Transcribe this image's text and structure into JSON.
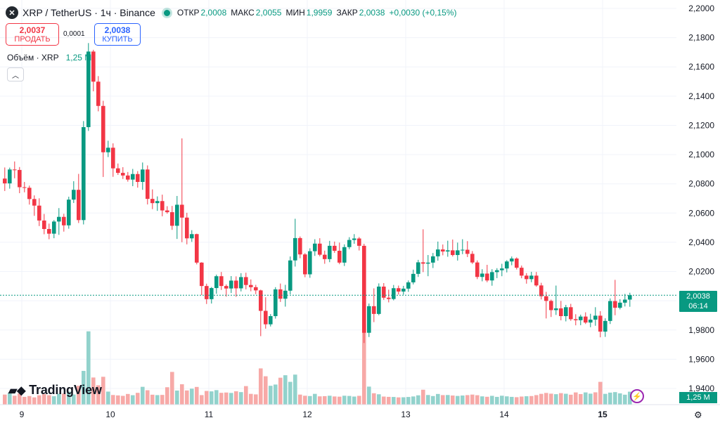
{
  "header": {
    "symbol": "XRP / TetherUS · 1ч · Binance",
    "open_label": "ОТКР",
    "open": "2,0008",
    "high_label": "МАКС",
    "high": "2,0055",
    "low_label": "МИН",
    "low": "1,9959",
    "close_label": "ЗАКР",
    "close": "2,0038",
    "change": "+0,0030 (+0,15%)"
  },
  "trade": {
    "sell_price": "2,0037",
    "sell_label": "ПРОДАТЬ",
    "spread": "0,0001",
    "buy_price": "2,0038",
    "buy_label": "КУПИТЬ"
  },
  "volume_legend": {
    "label": "Объём · XRP",
    "value": "1,25 M"
  },
  "brand": {
    "name": "TradingView"
  },
  "price_tag": {
    "price": "2,0038",
    "countdown": "06:14"
  },
  "volume_tag": {
    "value": "1,25 M"
  },
  "colors": {
    "up": "#089981",
    "down": "#f23645",
    "up_volume": "#92d2cc",
    "down_volume": "#f7a9a7"
  },
  "chart_data": {
    "type": "candlestick",
    "timeframe": "1ч",
    "y_ticks": [
      "2,2000",
      "2,1800",
      "2,1600",
      "2,1400",
      "2,1200",
      "2,1000",
      "2,0800",
      "2,0600",
      "2,0400",
      "2,0200",
      "2,0000",
      "1,9800",
      "1,9600",
      "1,9400"
    ],
    "ylim": [
      1.935,
      2.2
    ],
    "x_ticks": [
      "9",
      "10",
      "11",
      "12",
      "13",
      "14",
      "15"
    ],
    "last_price": 2.0038,
    "candles": [
      [
        2.0836,
        2.0912,
        2.0751,
        2.0803
      ],
      [
        2.0803,
        2.0911,
        2.0767,
        2.0898
      ],
      [
        2.0898,
        2.0953,
        2.0838,
        2.0895
      ],
      [
        2.0895,
        2.0915,
        2.0736,
        2.0777
      ],
      [
        2.0777,
        2.0813,
        2.0742,
        2.0773
      ],
      [
        2.0773,
        2.0788,
        2.0658,
        2.0696
      ],
      [
        2.0696,
        2.0721,
        2.0581,
        2.0651
      ],
      [
        2.0651,
        2.0701,
        2.0511,
        2.0549
      ],
      [
        2.0549,
        2.0594,
        2.0455,
        2.0491
      ],
      [
        2.0491,
        2.0528,
        2.0421,
        2.0459
      ],
      [
        2.0459,
        2.0552,
        2.0428,
        2.0542
      ],
      [
        2.0542,
        2.0634,
        2.0451,
        2.0574
      ],
      [
        2.0574,
        2.0595,
        2.0473,
        2.0516
      ],
      [
        2.0516,
        2.0712,
        2.0493,
        2.0692
      ],
      [
        2.0692,
        2.0818,
        2.0669,
        2.0759
      ],
      [
        2.0759,
        2.0868,
        2.0532,
        2.0552
      ],
      [
        2.0552,
        2.1229,
        2.0522,
        2.1188
      ],
      [
        2.1188,
        2.1763,
        2.1162,
        2.1705
      ],
      [
        2.1705,
        2.1717,
        2.1433,
        2.1499
      ],
      [
        2.1499,
        2.1537,
        2.1296,
        2.1333
      ],
      [
        2.1333,
        2.1368,
        2.0847,
        2.1016
      ],
      [
        2.1016,
        2.1095,
        2.0983,
        2.1047
      ],
      [
        2.1047,
        2.1077,
        2.0848,
        2.0906
      ],
      [
        2.0906,
        2.0939,
        2.0861,
        2.0875
      ],
      [
        2.0875,
        2.0914,
        2.0833,
        2.0857
      ],
      [
        2.0857,
        2.0881,
        2.0815,
        2.0829
      ],
      [
        2.0829,
        2.0902,
        2.0784,
        2.0867
      ],
      [
        2.0867,
        2.0887,
        2.0774,
        2.0813
      ],
      [
        2.0813,
        2.0946,
        2.0759,
        2.0898
      ],
      [
        2.0898,
        2.0926,
        2.0659,
        2.0697
      ],
      [
        2.0697,
        2.0762,
        2.0627,
        2.0668
      ],
      [
        2.0668,
        2.0714,
        2.0615,
        2.0682
      ],
      [
        2.0682,
        2.0726,
        2.0578,
        2.0618
      ],
      [
        2.0618,
        2.0647,
        2.0596,
        2.0606
      ],
      [
        2.0606,
        2.0649,
        2.0485,
        2.0513
      ],
      [
        2.0513,
        2.0717,
        2.0423,
        2.0657
      ],
      [
        2.0657,
        2.1111,
        2.0401,
        2.0569
      ],
      [
        2.0569,
        2.0602,
        2.0386,
        2.0427
      ],
      [
        2.0427,
        2.0483,
        2.0403,
        2.0456
      ],
      [
        2.0456,
        2.0459,
        2.0249,
        2.0261
      ],
      [
        2.0261,
        2.0264,
        2.0039,
        2.0101
      ],
      [
        2.0101,
        2.0117,
        1.9978,
        2.0011
      ],
      [
        2.0011,
        2.0094,
        1.9981,
        2.0087
      ],
      [
        2.0087,
        2.0179,
        2.0048,
        2.0168
      ],
      [
        2.0168,
        2.0197,
        2.0074,
        2.0101
      ],
      [
        2.0101,
        2.0112,
        2.0028,
        2.0084
      ],
      [
        2.0084,
        2.0169,
        2.0053,
        2.0138
      ],
      [
        2.0138,
        2.0167,
        2.0027,
        2.0085
      ],
      [
        2.0085,
        2.0189,
        2.0064,
        2.0162
      ],
      [
        2.0162,
        2.0192,
        2.0078,
        2.0108
      ],
      [
        2.0108,
        2.0146,
        2.0065,
        2.0093
      ],
      [
        2.0093,
        2.0109,
        2.0045,
        2.0071
      ],
      [
        2.0071,
        2.0076,
        1.9758,
        1.9931
      ],
      [
        1.9931,
        2.0024,
        1.9809,
        1.9839
      ],
      [
        1.9839,
        1.9909,
        1.9824,
        1.9895
      ],
      [
        1.9895,
        2.0093,
        1.9878,
        2.0078
      ],
      [
        2.0078,
        2.0118,
        1.9992,
        2.0014
      ],
      [
        2.0014,
        2.0109,
        1.996,
        2.0069
      ],
      [
        2.0069,
        2.0303,
        2.0044,
        2.0276
      ],
      [
        2.0276,
        2.0561,
        2.0234,
        2.0429
      ],
      [
        2.0429,
        2.044,
        2.0291,
        2.0317
      ],
      [
        2.0317,
        2.0326,
        2.0161,
        2.0181
      ],
      [
        2.0181,
        2.0359,
        2.0157,
        2.0339
      ],
      [
        2.0339,
        2.0421,
        2.0307,
        2.0391
      ],
      [
        2.0391,
        2.0428,
        2.0304,
        2.0315
      ],
      [
        2.0315,
        2.0343,
        2.0253,
        2.0285
      ],
      [
        2.0285,
        2.041,
        2.0264,
        2.0376
      ],
      [
        2.0376,
        2.0405,
        2.0328,
        2.0342
      ],
      [
        2.0342,
        2.0398,
        2.025,
        2.0261
      ],
      [
        2.0261,
        2.0386,
        2.0238,
        2.0367
      ],
      [
        2.0367,
        2.0435,
        2.0353,
        2.0416
      ],
      [
        2.0416,
        2.0456,
        2.039,
        2.0426
      ],
      [
        2.0426,
        2.0436,
        2.0344,
        2.0376
      ],
      [
        2.0376,
        2.039,
        1.9711,
        1.9781
      ],
      [
        1.9781,
        1.9981,
        1.9752,
        1.9963
      ],
      [
        1.9963,
        2.0085,
        1.9854,
        1.991
      ],
      [
        1.991,
        2.0119,
        1.9901,
        2.0097
      ],
      [
        2.0097,
        2.0121,
        2.0006,
        2.0021
      ],
      [
        2.0021,
        2.0076,
        1.9989,
        2.0012
      ],
      [
        2.0012,
        2.0108,
        2.0003,
        2.0086
      ],
      [
        2.0086,
        2.0104,
        2.0043,
        2.0063
      ],
      [
        2.0063,
        2.0102,
        2.0042,
        2.0083
      ],
      [
        2.0083,
        2.0139,
        2.0061,
        2.0126
      ],
      [
        2.0126,
        2.0213,
        2.0112,
        2.0184
      ],
      [
        2.0184,
        2.028,
        2.0163,
        2.0263
      ],
      [
        2.0263,
        2.0489,
        2.0196,
        2.0254
      ],
      [
        2.0254,
        2.0313,
        2.0168,
        2.0261
      ],
      [
        2.0261,
        2.0327,
        2.0224,
        2.0304
      ],
      [
        2.0304,
        2.0405,
        2.0274,
        2.0351
      ],
      [
        2.0351,
        2.0385,
        2.0311,
        2.0337
      ],
      [
        2.0337,
        2.0411,
        2.0301,
        2.0345
      ],
      [
        2.0345,
        2.0419,
        2.0303,
        2.0313
      ],
      [
        2.0313,
        2.0398,
        2.0275,
        2.0345
      ],
      [
        2.0345,
        2.0421,
        2.0319,
        2.0349
      ],
      [
        2.0349,
        2.0408,
        2.0299,
        2.0321
      ],
      [
        2.0321,
        2.034,
        2.0252,
        2.0262
      ],
      [
        2.0262,
        2.0276,
        2.0148,
        2.0163
      ],
      [
        2.0163,
        2.0216,
        2.0133,
        2.0186
      ],
      [
        2.0186,
        2.0246,
        2.0127,
        2.0139
      ],
      [
        2.0139,
        2.0216,
        2.0103,
        2.0196
      ],
      [
        2.0196,
        2.0223,
        2.0155,
        2.0209
      ],
      [
        2.0209,
        2.0253,
        2.0168,
        2.0221
      ],
      [
        2.0221,
        2.0278,
        2.0194,
        2.0269
      ],
      [
        2.0269,
        2.0303,
        2.0243,
        2.0289
      ],
      [
        2.0289,
        2.0297,
        2.0214,
        2.0226
      ],
      [
        2.0226,
        2.0241,
        2.0154,
        2.0172
      ],
      [
        2.0172,
        2.0189,
        2.0117,
        2.0148
      ],
      [
        2.0148,
        2.0198,
        2.0127,
        2.0172
      ],
      [
        2.0172,
        2.0197,
        2.0096,
        2.0105
      ],
      [
        2.0105,
        2.0123,
        2.0009,
        2.0031
      ],
      [
        2.0031,
        2.0061,
        1.9879,
        1.9999
      ],
      [
        1.9999,
        2.0008,
        1.9889,
        1.9936
      ],
      [
        1.9936,
        2.0104,
        1.9903,
        1.9948
      ],
      [
        1.9948,
        1.9999,
        1.9866,
        1.9895
      ],
      [
        1.9895,
        1.9972,
        1.9859,
        1.9956
      ],
      [
        1.9956,
        1.9979,
        1.9863,
        1.9874
      ],
      [
        1.9874,
        1.9908,
        1.9832,
        1.9867
      ],
      [
        1.9867,
        1.9905,
        1.9833,
        1.9892
      ],
      [
        1.9892,
        1.9921,
        1.9841,
        1.9851
      ],
      [
        1.9851,
        1.9911,
        1.9819,
        1.9871
      ],
      [
        1.9871,
        1.9956,
        1.9829,
        1.9898
      ],
      [
        1.9898,
        1.9929,
        1.975,
        1.9789
      ],
      [
        1.9789,
        1.988,
        1.9753,
        1.9862
      ],
      [
        1.9862,
        2.0016,
        1.9841,
        1.9998
      ],
      [
        1.9998,
        2.0143,
        1.9901,
        1.9952
      ],
      [
        1.9952,
        2.0011,
        1.9941,
        1.9987
      ],
      [
        1.9987,
        2.0047,
        1.9961,
        2.0008
      ],
      [
        2.0008,
        2.0055,
        1.9959,
        2.0038
      ]
    ],
    "volume_range": [
      0,
      9.5
    ],
    "volumes": [
      [
        0.97,
        0
      ],
      [
        1.13,
        1
      ],
      [
        0.86,
        0
      ],
      [
        1.07,
        0
      ],
      [
        0.75,
        0
      ],
      [
        0.83,
        0
      ],
      [
        0.7,
        0
      ],
      [
        0.9,
        0
      ],
      [
        1.01,
        0
      ],
      [
        0.91,
        0
      ],
      [
        0.81,
        1
      ],
      [
        1.05,
        1
      ],
      [
        1.07,
        0
      ],
      [
        1.26,
        1
      ],
      [
        0.98,
        1
      ],
      [
        1.82,
        0
      ],
      [
        3.26,
        1
      ],
      [
        7.08,
        1
      ],
      [
        2.62,
        0
      ],
      [
        1.87,
        0
      ],
      [
        2.69,
        0
      ],
      [
        1.26,
        1
      ],
      [
        0.93,
        0
      ],
      [
        0.89,
        0
      ],
      [
        0.85,
        0
      ],
      [
        1.03,
        0
      ],
      [
        0.91,
        1
      ],
      [
        1.14,
        0
      ],
      [
        1.72,
        1
      ],
      [
        1.39,
        0
      ],
      [
        0.96,
        0
      ],
      [
        0.92,
        1
      ],
      [
        0.94,
        0
      ],
      [
        1.68,
        0
      ],
      [
        3.16,
        0
      ],
      [
        1.36,
        1
      ],
      [
        1.97,
        0
      ],
      [
        1.37,
        0
      ],
      [
        1.54,
        1
      ],
      [
        1.71,
        0
      ],
      [
        0.92,
        0
      ],
      [
        1.32,
        0
      ],
      [
        1.28,
        1
      ],
      [
        1.4,
        1
      ],
      [
        1.14,
        0
      ],
      [
        1.17,
        0
      ],
      [
        1.13,
        1
      ],
      [
        1.29,
        0
      ],
      [
        1.21,
        1
      ],
      [
        1.79,
        0
      ],
      [
        1.04,
        0
      ],
      [
        0.99,
        0
      ],
      [
        3.5,
        0
      ],
      [
        2.74,
        0
      ],
      [
        1.82,
        1
      ],
      [
        1.94,
        1
      ],
      [
        2.6,
        0
      ],
      [
        2.84,
        1
      ],
      [
        2.2,
        1
      ],
      [
        2.9,
        1
      ],
      [
        0.97,
        0
      ],
      [
        0.86,
        0
      ],
      [
        0.83,
        1
      ],
      [
        1.04,
        1
      ],
      [
        0.8,
        0
      ],
      [
        0.82,
        0
      ],
      [
        0.86,
        1
      ],
      [
        0.79,
        0
      ],
      [
        0.77,
        0
      ],
      [
        0.86,
        1
      ],
      [
        0.84,
        1
      ],
      [
        0.78,
        1
      ],
      [
        0.85,
        0
      ],
      [
        7.77,
        0
      ],
      [
        1.74,
        1
      ],
      [
        1.1,
        0
      ],
      [
        1.0,
        1
      ],
      [
        0.78,
        0
      ],
      [
        0.75,
        0
      ],
      [
        0.74,
        1
      ],
      [
        0.7,
        0
      ],
      [
        0.71,
        1
      ],
      [
        0.74,
        1
      ],
      [
        0.79,
        1
      ],
      [
        0.9,
        1
      ],
      [
        1.44,
        0
      ],
      [
        0.93,
        1
      ],
      [
        0.83,
        1
      ],
      [
        1.03,
        1
      ],
      [
        0.92,
        0
      ],
      [
        0.93,
        1
      ],
      [
        0.88,
        0
      ],
      [
        0.84,
        1
      ],
      [
        0.88,
        1
      ],
      [
        0.92,
        0
      ],
      [
        0.97,
        0
      ],
      [
        0.91,
        0
      ],
      [
        0.8,
        1
      ],
      [
        0.76,
        0
      ],
      [
        0.85,
        1
      ],
      [
        0.75,
        1
      ],
      [
        0.86,
        1
      ],
      [
        0.8,
        1
      ],
      [
        0.75,
        1
      ],
      [
        0.72,
        0
      ],
      [
        0.78,
        0
      ],
      [
        0.81,
        1
      ],
      [
        0.83,
        0
      ],
      [
        0.92,
        0
      ],
      [
        1.04,
        0
      ],
      [
        1.13,
        0
      ],
      [
        1.06,
        0
      ],
      [
        1.01,
        1
      ],
      [
        1.11,
        0
      ],
      [
        1.05,
        1
      ],
      [
        0.96,
        0
      ],
      [
        1.18,
        0
      ],
      [
        1.02,
        0
      ],
      [
        1.18,
        1
      ],
      [
        1.06,
        1
      ],
      [
        1.19,
        0
      ],
      [
        2.2,
        0
      ],
      [
        1.04,
        1
      ],
      [
        1.16,
        1
      ],
      [
        1.21,
        1
      ],
      [
        1.09,
        1
      ],
      [
        0.96,
        1
      ],
      [
        1.25,
        1
      ]
    ]
  }
}
